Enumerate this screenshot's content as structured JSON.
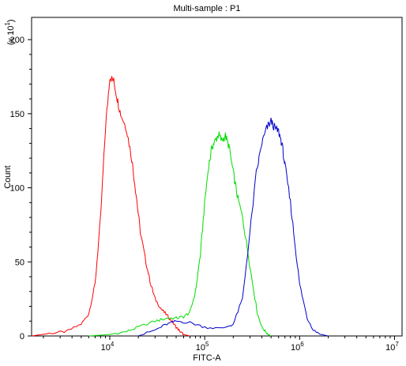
{
  "chart_data": {
    "type": "line",
    "title": "Multi-sample : P1",
    "xlabel": "FITC-A",
    "ylabel": "Count",
    "y_multiplier_label": "(x 10",
    "y_multiplier_exp": "1",
    "x_scale": "log",
    "xlim": [
      1500,
      12000000
    ],
    "ylim": [
      0,
      215
    ],
    "x_ticks": [
      {
        "value": 10000,
        "base": "10",
        "exp": "4"
      },
      {
        "value": 100000,
        "base": "10",
        "exp": "5"
      },
      {
        "value": 1000000,
        "base": "10",
        "exp": "6"
      },
      {
        "value": 10000000,
        "base": "10",
        "exp": "7"
      }
    ],
    "y_ticks": [
      0,
      50,
      100,
      150,
      200
    ],
    "grid": false,
    "legend": "none",
    "series": [
      {
        "color": "#ff0000",
        "x": [
          1500,
          2500,
          3500,
          5000,
          6000,
          7000,
          8000,
          9000,
          10000,
          11000,
          12000,
          13000,
          15000,
          17000,
          19000,
          21000,
          24000,
          27000,
          30000,
          35000,
          40000,
          45000,
          50000,
          55000,
          60000,
          70000
        ],
        "y": [
          0,
          2,
          3,
          8,
          15,
          35,
          80,
          140,
          175,
          172,
          160,
          150,
          140,
          120,
          95,
          70,
          50,
          35,
          25,
          18,
          14,
          10,
          6,
          3,
          1,
          0
        ]
      },
      {
        "color": "#00dd00",
        "x": [
          6000,
          10000,
          15000,
          20000,
          30000,
          40000,
          50000,
          60000,
          70000,
          80000,
          90000,
          100000,
          110000,
          120000,
          130000,
          140000,
          150000,
          165000,
          180000,
          200000,
          220000,
          250000,
          280000,
          320000,
          360000,
          400000,
          450000,
          500000
        ],
        "y": [
          0,
          1,
          3,
          6,
          10,
          12,
          12,
          13,
          16,
          30,
          55,
          90,
          115,
          128,
          132,
          136,
          132,
          135,
          128,
          110,
          95,
          80,
          60,
          35,
          15,
          6,
          2,
          0
        ]
      },
      {
        "color": "#0000cc",
        "x": [
          20000,
          30000,
          40000,
          50000,
          70000,
          100000,
          150000,
          200000,
          250000,
          300000,
          350000,
          400000,
          450000,
          500000,
          550000,
          600000,
          650000,
          700000,
          800000,
          900000,
          1000000,
          1200000,
          1400000,
          1700000,
          2000000
        ],
        "y": [
          0,
          4,
          8,
          10,
          9,
          6,
          5,
          8,
          25,
          70,
          110,
          130,
          140,
          145,
          140,
          138,
          130,
          115,
          90,
          60,
          35,
          12,
          4,
          1,
          0
        ]
      }
    ]
  }
}
